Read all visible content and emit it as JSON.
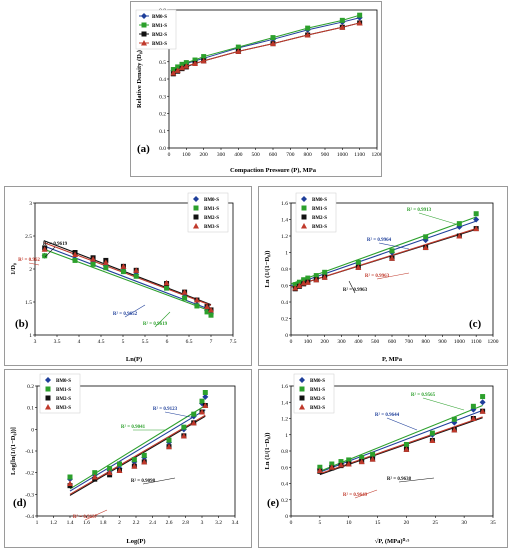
{
  "colors": {
    "BM0-S": "#1f3f9a",
    "BM1-S": "#2ca02c",
    "BM2-S": "#111111",
    "BM3-S": "#c0392b",
    "fit_c_green": "#2ca02c",
    "axis": "#000000"
  },
  "chart_data": [
    {
      "panel_id": "a",
      "type": "line",
      "label": "(a)",
      "xlabel": "Compaction Pressure (P), MPa",
      "ylabel": "Relative Density (D₀)",
      "xlim": [
        0,
        1200
      ],
      "ylim": [
        0.0,
        0.8
      ],
      "xticks": [
        "0",
        "100",
        "200",
        "300",
        "400",
        "500",
        "600",
        "700",
        "800",
        "900",
        "1000",
        "1100",
        "1200"
      ],
      "yticks": [
        "0.0",
        "0.1",
        "0.2",
        "0.3",
        "0.4",
        "0.5",
        "0.6",
        "0.7",
        "0.8"
      ],
      "legend": {
        "position": "top-left",
        "entries": [
          "BM0-S",
          "BM1-S",
          "BM2-S",
          "BM3-S"
        ]
      },
      "x": [
        25,
        50,
        75,
        100,
        150,
        200,
        400,
        600,
        800,
        1000,
        1100
      ],
      "series": [
        {
          "name": "BM0-S",
          "values": [
            0.45,
            0.465,
            0.475,
            0.49,
            0.505,
            0.52,
            0.58,
            0.63,
            0.685,
            0.73,
            0.755
          ]
        },
        {
          "name": "BM1-S",
          "values": [
            0.455,
            0.47,
            0.485,
            0.495,
            0.51,
            0.53,
            0.585,
            0.64,
            0.695,
            0.74,
            0.77
          ]
        },
        {
          "name": "BM2-S",
          "values": [
            0.43,
            0.445,
            0.46,
            0.47,
            0.49,
            0.505,
            0.56,
            0.605,
            0.655,
            0.7,
            0.725
          ]
        },
        {
          "name": "BM3-S",
          "values": [
            0.435,
            0.45,
            0.465,
            0.475,
            0.49,
            0.505,
            0.56,
            0.605,
            0.655,
            0.7,
            0.725
          ]
        }
      ]
    },
    {
      "panel_id": "b",
      "type": "scatter",
      "label": "(b)",
      "xlabel": "Ln(P)",
      "ylabel": "1/D₀",
      "xlim": [
        3,
        7.5
      ],
      "ylim": [
        1,
        3
      ],
      "xticks": [
        "3",
        "3.5",
        "4",
        "4.5",
        "5",
        "5.5",
        "6",
        "6.5",
        "7",
        "7.5"
      ],
      "yticks": [
        "1",
        "1.5",
        "2",
        "2.5",
        "3"
      ],
      "legend": {
        "position": "top-right",
        "entries": [
          "BM0-S",
          "BM1-S",
          "BM2-S",
          "BM3-S"
        ]
      },
      "x": [
        3.22,
        3.91,
        4.32,
        4.61,
        5.01,
        5.3,
        5.99,
        6.4,
        6.68,
        6.91,
        7.0
      ],
      "series": [
        {
          "name": "BM0-S",
          "values": [
            2.2,
            2.15,
            2.1,
            2.05,
            1.98,
            1.92,
            1.72,
            1.58,
            1.46,
            1.37,
            1.32
          ]
        },
        {
          "name": "BM1-S",
          "values": [
            2.2,
            2.13,
            2.07,
            2.02,
            1.96,
            1.89,
            1.71,
            1.56,
            1.44,
            1.35,
            1.3
          ]
        },
        {
          "name": "BM2-S",
          "values": [
            2.32,
            2.25,
            2.17,
            2.13,
            2.04,
            1.98,
            1.78,
            1.65,
            1.53,
            1.43,
            1.38
          ]
        },
        {
          "name": "BM3-S",
          "values": [
            2.3,
            2.22,
            2.15,
            2.1,
            2.04,
            1.98,
            1.79,
            1.65,
            1.53,
            1.43,
            1.38
          ]
        }
      ],
      "fits": [
        {
          "name": "BM0-S",
          "x1": 3.2,
          "y1": 2.35,
          "x2": 7.0,
          "y2": 1.38
        },
        {
          "name": "BM1-S",
          "x1": 3.2,
          "y1": 2.3,
          "x2": 7.0,
          "y2": 1.36
        },
        {
          "name": "BM2-S",
          "x1": 3.2,
          "y1": 2.43,
          "x2": 7.0,
          "y2": 1.46
        },
        {
          "name": "BM3-S",
          "x1": 3.2,
          "y1": 2.4,
          "x2": 7.0,
          "y2": 1.45
        }
      ],
      "annotations": [
        {
          "text": "R² = 0.9619",
          "color": "#111111"
        },
        {
          "text": "R² = 0.962",
          "color": "#c0392b"
        },
        {
          "text": "R² = 0.9652",
          "color": "#1f3f9a"
        },
        {
          "text": "R² = 0.9619",
          "color": "#2ca02c"
        }
      ]
    },
    {
      "panel_id": "c",
      "type": "scatter",
      "label": "(c)",
      "xlabel": "P, MPa",
      "ylabel": "Ln (1/(1−D₀))",
      "xlim": [
        0,
        1200
      ],
      "ylim": [
        0,
        1.6
      ],
      "xticks": [
        "0",
        "100",
        "200",
        "300",
        "400",
        "500",
        "600",
        "700",
        "800",
        "900",
        "1000",
        "1100",
        "1200"
      ],
      "yticks": [
        "0",
        "0.2",
        "0.4",
        "0.6",
        "0.8",
        "1",
        "1.2",
        "1.4",
        "1.6"
      ],
      "legend": {
        "position": "top-left",
        "entries": [
          "BM0-S",
          "BM1-S",
          "BM2-S",
          "BM3-S"
        ]
      },
      "x": [
        25,
        50,
        75,
        100,
        150,
        200,
        400,
        600,
        800,
        1000,
        1100
      ],
      "series": [
        {
          "name": "BM0-S",
          "values": [
            0.6,
            0.62,
            0.64,
            0.67,
            0.7,
            0.73,
            0.87,
            1.0,
            1.15,
            1.31,
            1.4
          ]
        },
        {
          "name": "BM1-S",
          "values": [
            0.61,
            0.64,
            0.67,
            0.69,
            0.72,
            0.76,
            0.88,
            1.02,
            1.19,
            1.35,
            1.47
          ]
        },
        {
          "name": "BM2-S",
          "values": [
            0.56,
            0.59,
            0.62,
            0.64,
            0.67,
            0.7,
            0.82,
            0.93,
            1.06,
            1.2,
            1.29
          ]
        },
        {
          "name": "BM3-S",
          "values": [
            0.57,
            0.6,
            0.63,
            0.64,
            0.67,
            0.7,
            0.82,
            0.93,
            1.06,
            1.2,
            1.29
          ]
        }
      ],
      "fits": [
        {
          "name": "BM0-S",
          "x1": 0,
          "y1": 0.6,
          "x2": 1100,
          "y2": 1.38
        },
        {
          "name": "BM1-S",
          "x1": 0,
          "y1": 0.62,
          "x2": 1100,
          "y2": 1.43
        },
        {
          "name": "BM2-S",
          "x1": 0,
          "y1": 0.58,
          "x2": 1100,
          "y2": 1.28
        },
        {
          "name": "BM3-S",
          "x1": 0,
          "y1": 0.58,
          "x2": 1100,
          "y2": 1.29
        }
      ],
      "annotations": [
        {
          "text": "R² = 0.9913",
          "color": "#2ca02c"
        },
        {
          "text": "R² = 0.9964",
          "color": "#1f3f9a"
        },
        {
          "text": "R² = 0.9963",
          "color": "#c0392b"
        },
        {
          "text": "R² = 0.9963",
          "color": "#111111"
        }
      ]
    },
    {
      "panel_id": "d",
      "type": "scatter",
      "label": "(d)",
      "xlabel": "Log(P)",
      "ylabel": "Log[ln(1/(1−D₀))]",
      "xlim": [
        1,
        3.4
      ],
      "ylim": [
        -0.4,
        0.2
      ],
      "xticks": [
        "1",
        "1.2",
        "1.4",
        "1.6",
        "1.8",
        "2",
        "2.2",
        "2.4",
        "2.6",
        "2.8",
        "3",
        "3.2",
        "3.4"
      ],
      "yticks": [
        "-0.4",
        "-0.3",
        "-0.2",
        "-0.1",
        "0",
        "0.1",
        "0.2"
      ],
      "legend": {
        "position": "top-left",
        "entries": [
          "BM0-S",
          "BM1-S",
          "BM2-S",
          "BM3-S"
        ]
      },
      "x": [
        1.4,
        1.7,
        1.88,
        2.0,
        2.18,
        2.3,
        2.6,
        2.78,
        2.9,
        3.0,
        3.04
      ],
      "series": [
        {
          "name": "BM0-S",
          "values": [
            -0.23,
            -0.21,
            -0.19,
            -0.18,
            -0.15,
            -0.13,
            -0.06,
            0.0,
            0.06,
            0.12,
            0.15
          ]
        },
        {
          "name": "BM1-S",
          "values": [
            -0.22,
            -0.2,
            -0.18,
            -0.16,
            -0.14,
            -0.12,
            -0.05,
            0.01,
            0.07,
            0.13,
            0.17
          ]
        },
        {
          "name": "BM2-S",
          "values": [
            -0.26,
            -0.23,
            -0.21,
            -0.19,
            -0.17,
            -0.15,
            -0.08,
            -0.03,
            0.03,
            0.08,
            0.11
          ]
        },
        {
          "name": "BM3-S",
          "values": [
            -0.25,
            -0.22,
            -0.2,
            -0.19,
            -0.17,
            -0.15,
            -0.08,
            -0.03,
            0.03,
            0.08,
            0.11
          ]
        }
      ],
      "fits": [
        {
          "name": "BM0-S",
          "x1": 1.4,
          "y1": -0.285,
          "x2": 3.04,
          "y2": 0.09
        },
        {
          "name": "BM1-S",
          "x1": 1.4,
          "y1": -0.275,
          "x2": 3.04,
          "y2": 0.11
        },
        {
          "name": "BM2-S",
          "x1": 1.4,
          "y1": -0.305,
          "x2": 3.04,
          "y2": 0.06
        },
        {
          "name": "BM3-S",
          "x1": 1.4,
          "y1": -0.3,
          "x2": 3.04,
          "y2": 0.065
        }
      ],
      "annotations": [
        {
          "text": "R² = 0.9123",
          "color": "#1f3f9a"
        },
        {
          "text": "R² = 0.9041",
          "color": "#2ca02c"
        },
        {
          "text": "R² = 0.9098",
          "color": "#111111"
        },
        {
          "text": "R² = 0.9137",
          "color": "#c0392b"
        }
      ]
    },
    {
      "panel_id": "e",
      "type": "scatter",
      "label": "(e)",
      "xlabel": "√P, (MPa)⁰·⁵",
      "ylabel": "Ln (1/(1−D₀))",
      "xlim": [
        0,
        35
      ],
      "ylim": [
        0,
        1.6
      ],
      "xticks": [
        "0",
        "5",
        "10",
        "15",
        "20",
        "25",
        "30",
        "35"
      ],
      "yticks": [
        "0",
        "0.2",
        "0.4",
        "0.6",
        "0.8",
        "1",
        "1.2",
        "1.4",
        "1.6"
      ],
      "legend": {
        "position": "top-left",
        "entries": [
          "BM0-S",
          "BM1-S",
          "BM2-S",
          "BM3-S"
        ]
      },
      "x": [
        5,
        7.07,
        8.66,
        10,
        12.25,
        14.14,
        20,
        24.5,
        28.3,
        31.6,
        33.2
      ],
      "series": [
        {
          "name": "BM0-S",
          "values": [
            0.58,
            0.62,
            0.64,
            0.67,
            0.7,
            0.73,
            0.87,
            1.0,
            1.15,
            1.31,
            1.4
          ]
        },
        {
          "name": "BM1-S",
          "values": [
            0.6,
            0.64,
            0.67,
            0.69,
            0.72,
            0.76,
            0.88,
            1.02,
            1.19,
            1.35,
            1.47
          ]
        },
        {
          "name": "BM2-S",
          "values": [
            0.55,
            0.59,
            0.62,
            0.64,
            0.67,
            0.7,
            0.82,
            0.93,
            1.06,
            1.2,
            1.29
          ]
        },
        {
          "name": "BM3-S",
          "values": [
            0.56,
            0.6,
            0.63,
            0.64,
            0.67,
            0.7,
            0.82,
            0.93,
            1.06,
            1.2,
            1.29
          ]
        }
      ],
      "fits": [
        {
          "name": "BM0-S",
          "x1": 5,
          "y1": 0.54,
          "x2": 33.2,
          "y2": 1.3
        },
        {
          "name": "BM1-S",
          "x1": 5,
          "y1": 0.55,
          "x2": 33.2,
          "y2": 1.36
        },
        {
          "name": "BM2-S",
          "x1": 5,
          "y1": 0.51,
          "x2": 33.2,
          "y2": 1.21
        },
        {
          "name": "BM3-S",
          "x1": 5,
          "y1": 0.52,
          "x2": 33.2,
          "y2": 1.22
        }
      ],
      "annotations": [
        {
          "text": "R² = 0.9565",
          "color": "#2ca02c"
        },
        {
          "text": "R² = 0.9644",
          "color": "#1f3f9a"
        },
        {
          "text": "R² = 0.9638",
          "color": "#111111"
        },
        {
          "text": "R² = 0.9649",
          "color": "#c0392b"
        }
      ]
    }
  ]
}
